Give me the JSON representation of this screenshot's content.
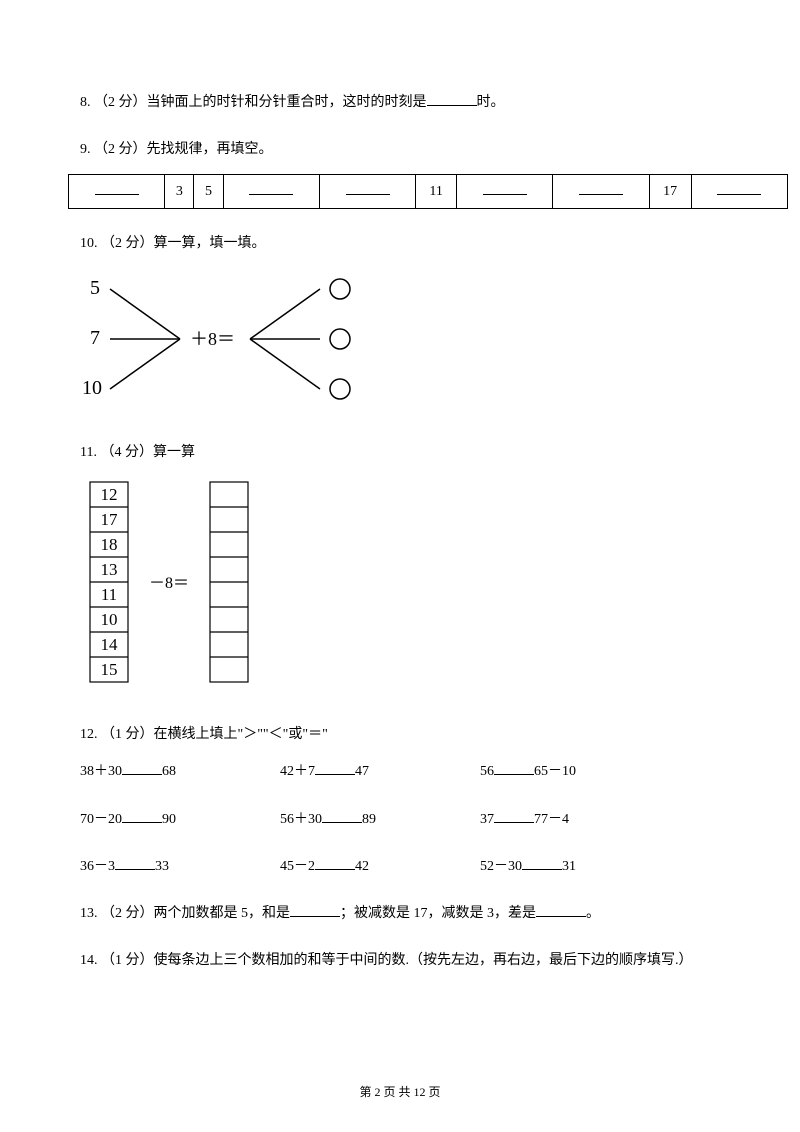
{
  "q8": {
    "text_a": "8. （2 分）当钟面上的时针和分针重合时，这时的时刻是",
    "text_b": "时。"
  },
  "q9": {
    "text": "9. （2 分）先找规律，再填空。",
    "cells": [
      "",
      "3",
      "5",
      "",
      "",
      "11",
      "",
      "",
      "17",
      ""
    ]
  },
  "q10": {
    "text": "10. （2 分）算一算，填一填。",
    "inputs": [
      "5",
      "7",
      "10"
    ],
    "op": "＋8＝"
  },
  "q11": {
    "text": "11. （4 分）算一算",
    "left": [
      "12",
      "17",
      "18",
      "13",
      "11",
      "10",
      "14",
      "15"
    ],
    "op": "－8＝"
  },
  "q12": {
    "text": "12. （1 分）在横线上填上\"＞\"\"＜\"或\"＝\"",
    "rows": [
      [
        {
          "l": "38＋30",
          "r": "68"
        },
        {
          "l": "42＋7",
          "r": "47"
        },
        {
          "l": "56",
          "r": "65－10"
        }
      ],
      [
        {
          "l": "70－20",
          "r": "90"
        },
        {
          "l": "56＋30",
          "r": "89"
        },
        {
          "l": "37",
          "r": "77－4"
        }
      ],
      [
        {
          "l": "36－3",
          "r": "33"
        },
        {
          "l": "45－2",
          "r": "42"
        },
        {
          "l": "52－30",
          "r": "31"
        }
      ]
    ]
  },
  "q13": {
    "a": "13. （2 分）两个加数都是 5，和是",
    "b": "；被减数是 17，减数是 3，差是",
    "c": "。"
  },
  "q14": {
    "text": "14. （1 分）使每条边上三个数相加的和等于中间的数.（按先左边，再右边，最后下边的顺序填写.）"
  },
  "footer": "第 2 页 共 12 页"
}
